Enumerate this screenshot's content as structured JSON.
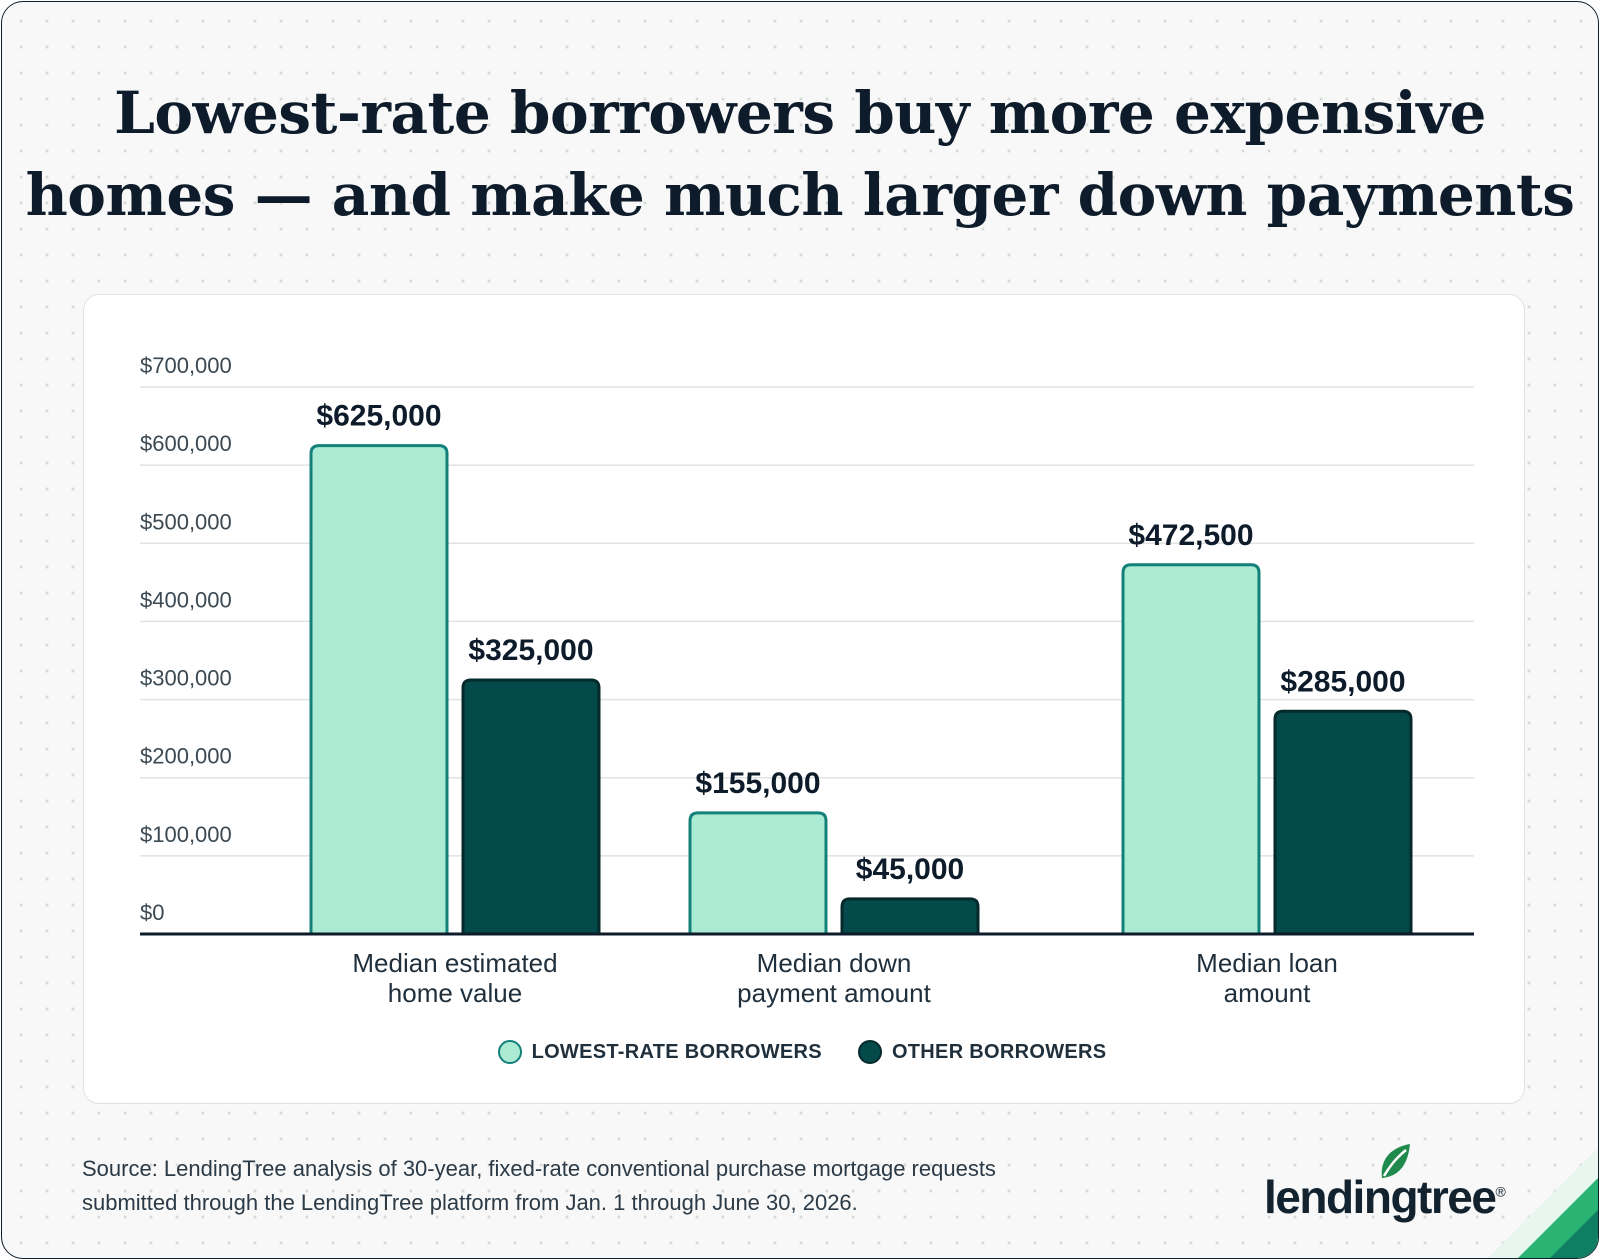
{
  "title": {
    "line1": "Lowest-rate borrowers buy more expensive",
    "line2": "homes — and make much larger down payments"
  },
  "chart_data": {
    "type": "bar",
    "categories": [
      [
        "Median estimated",
        "home value"
      ],
      [
        "Median down",
        "payment amount"
      ],
      [
        "Median loan",
        "amount"
      ]
    ],
    "series": [
      {
        "name": "LOWEST-RATE BORROWERS",
        "values": [
          625000,
          155000,
          472500
        ],
        "labels": [
          "$625,000",
          "$155,000",
          "$472,500"
        ],
        "color": "#abebd4",
        "stroke": "#13807a"
      },
      {
        "name": "OTHER BORROWERS",
        "values": [
          325000,
          45000,
          285000
        ],
        "labels": [
          "$325,000",
          "$45,000",
          "$285,000"
        ],
        "color": "#044a4b",
        "stroke": "#06292c"
      }
    ],
    "yticks": [
      0,
      100000,
      200000,
      300000,
      400000,
      500000,
      600000,
      700000
    ],
    "ytick_labels": [
      "$0",
      "$100,000",
      "$200,000",
      "$300,000",
      "$400,000",
      "$500,000",
      "$600,000",
      "$700,000"
    ],
    "ylim": [
      0,
      700000
    ],
    "grid": true,
    "legend_position": "bottom-center",
    "title": "",
    "xlabel": "",
    "ylabel": ""
  },
  "source": {
    "line1": "Source: LendingTree analysis of 30-year, fixed-rate conventional purchase mortgage requests",
    "line2": "submitted through the LendingTree platform from Jan. 1 through June 30, 2026."
  },
  "brand": {
    "logo_text": "lendingtree",
    "registered_mark": "®",
    "leaf_color": "#1f8a4c",
    "accent_color": "#29b473"
  },
  "icons": {
    "logo": "lendingtree-leaf-icon",
    "corner": "corner-stripe-icon"
  }
}
